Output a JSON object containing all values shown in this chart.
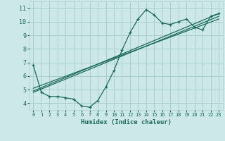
{
  "xlabel": "Humidex (Indice chaleur)",
  "bg_color": "#cce8e8",
  "grid_color": "#aacece",
  "line_color": "#1a6b5a",
  "xlim": [
    -0.5,
    23.5
  ],
  "ylim": [
    3.5,
    11.5
  ],
  "xticks": [
    0,
    1,
    2,
    3,
    4,
    5,
    6,
    7,
    8,
    9,
    10,
    11,
    12,
    13,
    14,
    15,
    16,
    17,
    18,
    19,
    20,
    21,
    22,
    23
  ],
  "yticks": [
    4,
    5,
    6,
    7,
    8,
    9,
    10,
    11
  ],
  "line1_x": [
    0,
    1,
    2,
    3,
    4,
    5,
    6,
    7,
    8,
    9,
    10,
    11,
    12,
    13,
    14,
    15,
    16,
    17,
    18,
    19,
    20,
    21,
    22,
    23
  ],
  "line1_y": [
    6.8,
    4.8,
    4.5,
    4.5,
    4.4,
    4.3,
    3.8,
    3.7,
    4.2,
    5.2,
    6.4,
    7.9,
    9.2,
    10.2,
    10.9,
    10.5,
    9.9,
    9.8,
    10.0,
    10.2,
    9.6,
    9.4,
    10.4,
    10.6
  ],
  "line2_x": [
    0,
    23
  ],
  "line2_y": [
    4.8,
    10.4
  ],
  "line3_x": [
    0,
    23
  ],
  "line3_y": [
    4.9,
    10.6
  ],
  "line4_x": [
    0,
    23
  ],
  "line4_y": [
    5.1,
    10.2
  ]
}
